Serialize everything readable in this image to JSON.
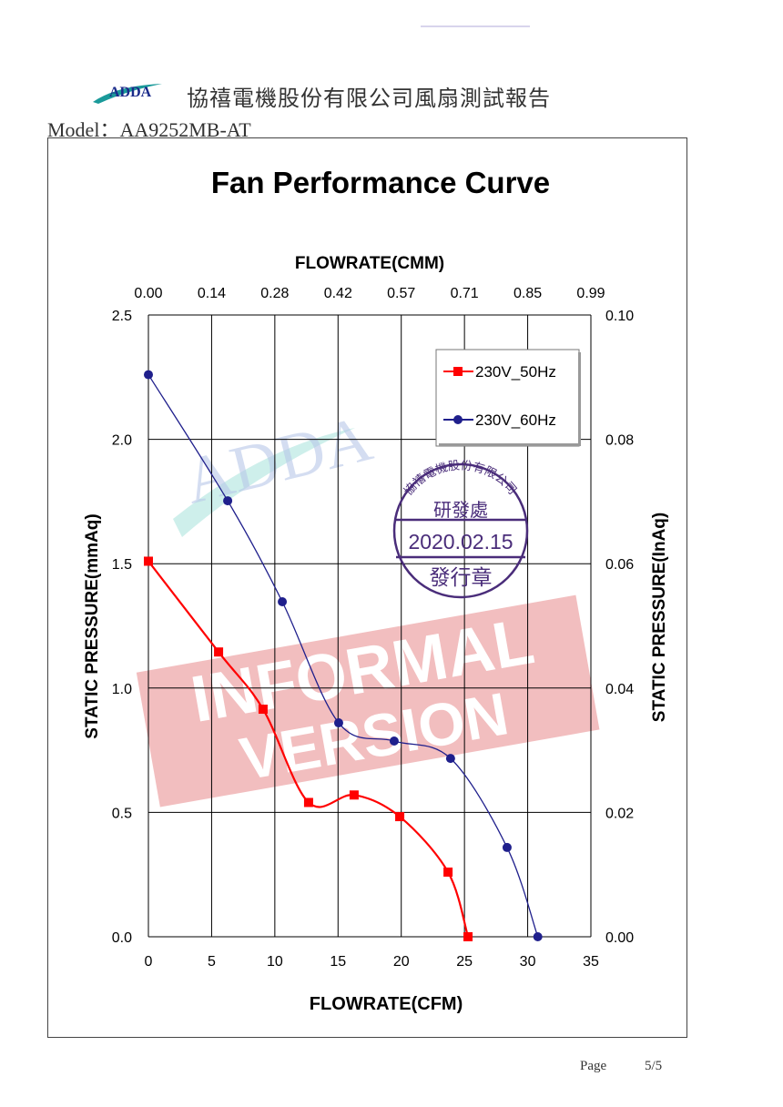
{
  "header": {
    "logo_text": "ADDA",
    "company_title": "協禧電機股份有限公司風扇測試報告",
    "model_label": "Model：AA9252MB-AT"
  },
  "footer": {
    "page_label": "Page",
    "page_number": "5/5"
  },
  "watermark": {
    "line1": "INFORMAL",
    "line2": "VERSION",
    "logo_text": "ADDA"
  },
  "stamp": {
    "company_arc": "協禧電機股份有限公司",
    "department": "研發處",
    "date": "2020.02.15",
    "bottom": "發行章"
  },
  "colors": {
    "red": "#ff0000",
    "blue": "#1f1f8c",
    "grid": "#000000",
    "stamp": "#4a2d7a",
    "watermark": "#e8888a"
  },
  "chart_data": {
    "type": "line",
    "title": "Fan Performance Curve",
    "xlabel": "FLOWRATE(CFM)",
    "x2label": "FLOWRATE(CMM)",
    "ylabel": "STATIC PRESSURE(mmAq)",
    "y2label": "STATIC PRESSURE(InAq)",
    "xlim": [
      0,
      35
    ],
    "ylim": [
      0,
      2.5
    ],
    "x_ticks": [
      "0",
      "5",
      "10",
      "15",
      "20",
      "25",
      "30",
      "35"
    ],
    "x2_ticks": [
      "0.00",
      "0.14",
      "0.28",
      "0.42",
      "0.57",
      "0.71",
      "0.85",
      "0.99"
    ],
    "y_ticks": [
      "0.0",
      "0.5",
      "1.0",
      "1.5",
      "2.0",
      "2.5"
    ],
    "y2_ticks": [
      "0.00",
      "0.02",
      "0.04",
      "0.06",
      "0.08",
      "0.10"
    ],
    "grid": true,
    "legend_position": "top-right",
    "series": [
      {
        "name": "230V_50Hz",
        "color": "#ff0000",
        "marker": "square",
        "x": [
          0,
          5.55,
          9.07,
          12.67,
          16.27,
          19.88,
          23.7,
          25.28
        ],
        "y": [
          1.51,
          1.145,
          0.915,
          0.54,
          0.57,
          0.483,
          0.26,
          0
        ]
      },
      {
        "name": "230V_60Hz",
        "color": "#1f1f8c",
        "marker": "circle",
        "x": [
          0,
          6.27,
          10.59,
          15.05,
          19.44,
          23.9,
          28.37,
          30.8
        ],
        "y": [
          2.26,
          1.753,
          1.347,
          0.86,
          0.787,
          0.717,
          0.359,
          0
        ]
      }
    ]
  }
}
